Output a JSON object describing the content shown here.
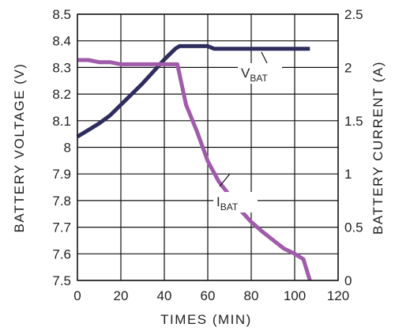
{
  "chart_data": {
    "type": "line",
    "xlabel": "TIMES (MIN)",
    "ylabel_left": "BATTERY VOLTAGE (V)",
    "ylabel_right": "BATTERY CURRENT (A)",
    "xlim": [
      0,
      120
    ],
    "ylim_left": [
      7.5,
      8.5
    ],
    "ylim_right": [
      0,
      2.5
    ],
    "grid": true,
    "x_ticks": [
      "0",
      "20",
      "40",
      "60",
      "80",
      "100",
      "120"
    ],
    "y_left_ticks": [
      "7.5",
      "7.6",
      "7.7",
      "7.8",
      "7.9",
      "8",
      "8.1",
      "8.2",
      "8.3",
      "8.4",
      "8.5"
    ],
    "y_right_ticks": [
      "0",
      "0.5",
      "1",
      "1.5",
      "2",
      "2.5"
    ],
    "series": [
      {
        "name_main": "V",
        "name_sub": "BAT",
        "axis": "left",
        "color": "#2e2d5e",
        "points": [
          [
            0,
            8.04
          ],
          [
            5,
            8.065
          ],
          [
            10,
            8.09
          ],
          [
            15,
            8.12
          ],
          [
            20,
            8.16
          ],
          [
            25,
            8.2
          ],
          [
            30,
            8.24
          ],
          [
            35,
            8.285
          ],
          [
            40,
            8.33
          ],
          [
            45,
            8.37
          ],
          [
            47,
            8.38
          ],
          [
            55,
            8.38
          ],
          [
            60,
            8.38
          ],
          [
            63,
            8.37
          ],
          [
            70,
            8.37
          ],
          [
            80,
            8.37
          ],
          [
            90,
            8.37
          ],
          [
            100,
            8.37
          ],
          [
            107,
            8.37
          ]
        ]
      },
      {
        "name_main": "I",
        "name_sub": "BAT",
        "axis": "right",
        "color": "#a05cab",
        "points": [
          [
            0,
            2.07
          ],
          [
            5,
            2.07
          ],
          [
            10,
            2.05
          ],
          [
            15,
            2.05
          ],
          [
            20,
            2.03
          ],
          [
            30,
            2.03
          ],
          [
            40,
            2.03
          ],
          [
            46,
            2.03
          ],
          [
            50,
            1.65
          ],
          [
            55,
            1.4
          ],
          [
            60,
            1.12
          ],
          [
            65,
            0.93
          ],
          [
            70,
            0.8
          ],
          [
            75,
            0.66
          ],
          [
            80,
            0.55
          ],
          [
            85,
            0.46
          ],
          [
            90,
            0.38
          ],
          [
            95,
            0.3
          ],
          [
            100,
            0.25
          ],
          [
            104,
            0.2
          ],
          [
            107,
            0.0
          ]
        ]
      }
    ]
  }
}
